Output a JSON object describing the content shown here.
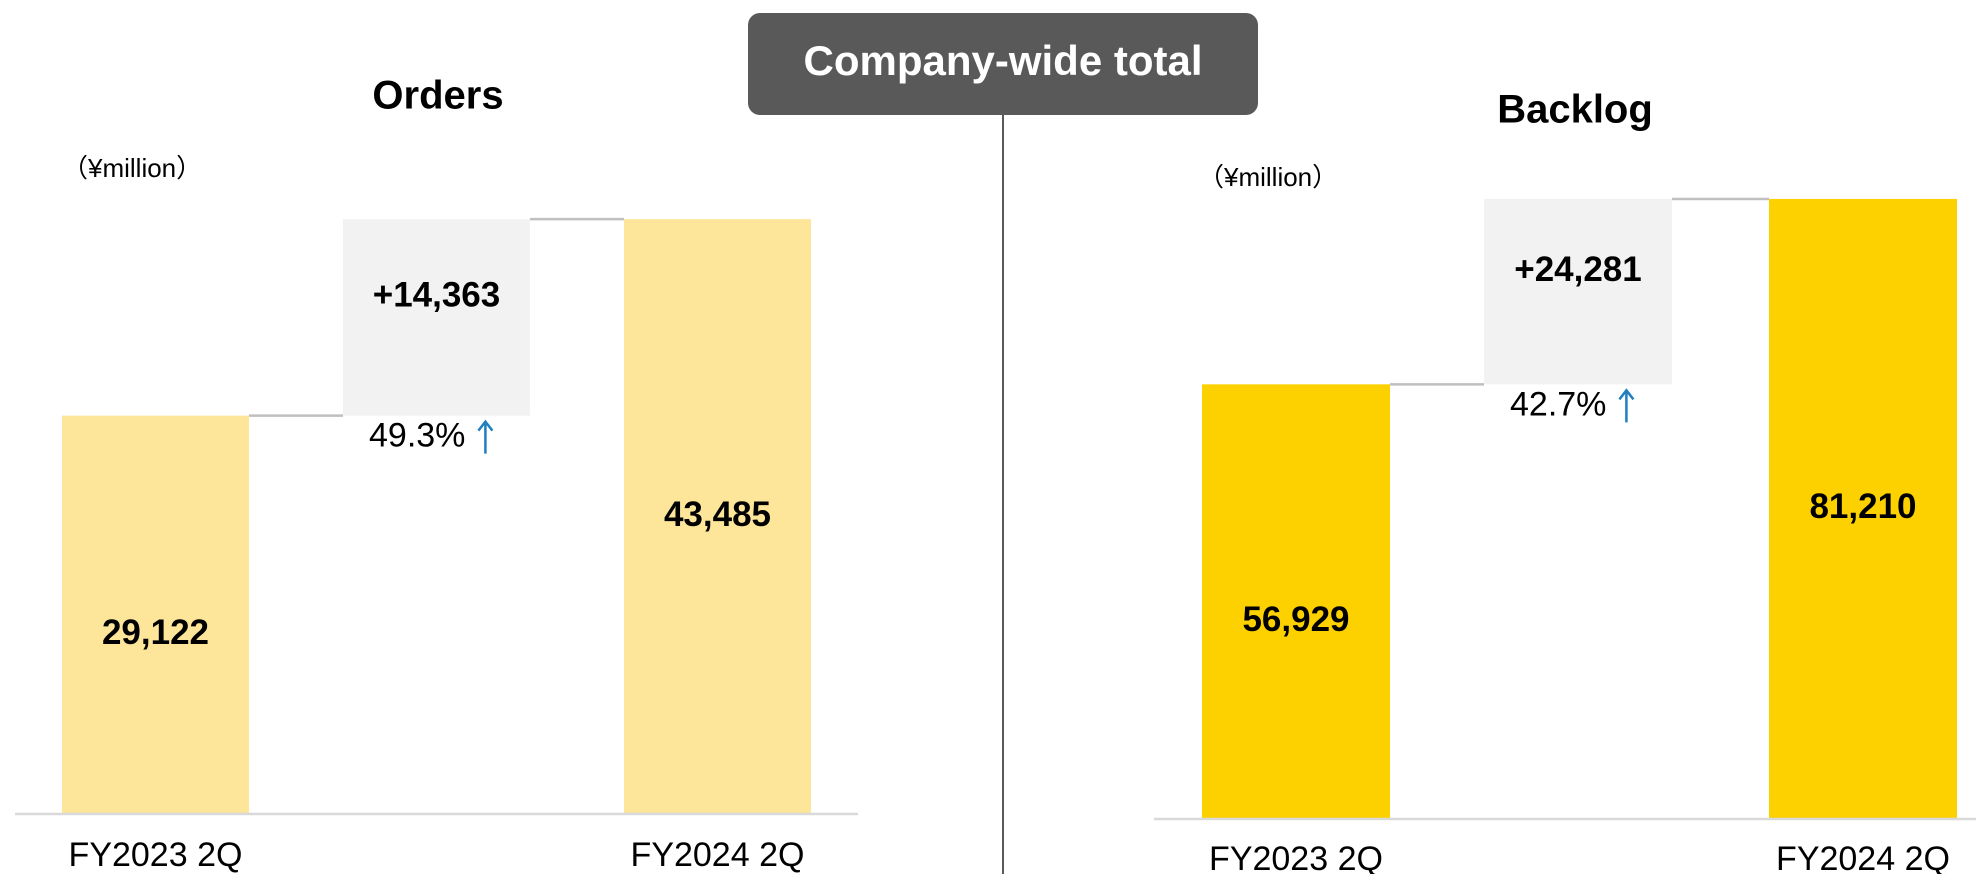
{
  "header": "Company-wide total",
  "chart_data": [
    {
      "type": "waterfall",
      "title": "Orders",
      "unit_label": "（¥million）",
      "categories": [
        "FY2023 2Q",
        null,
        "FY2024 2Q"
      ],
      "values": [
        29122,
        14363,
        43485
      ],
      "value_labels": [
        "29,122",
        "+14,363",
        "43,485"
      ],
      "change_label": "49.3%",
      "colors": [
        "#fde59a",
        "#f2f2f2",
        "#fde59a"
      ],
      "ylim": [
        0,
        45000
      ]
    },
    {
      "type": "waterfall",
      "title": "Backlog",
      "unit_label": "（¥million）",
      "categories": [
        "FY2023 2Q",
        null,
        "FY2024 2Q"
      ],
      "values": [
        56929,
        24281,
        81210
      ],
      "value_labels": [
        "56,929",
        "+24,281",
        "81,210"
      ],
      "change_label": "42.7%",
      "colors": [
        "#fdd000",
        "#f2f2f2",
        "#fdd000"
      ],
      "ylim": [
        0,
        85000
      ]
    }
  ]
}
